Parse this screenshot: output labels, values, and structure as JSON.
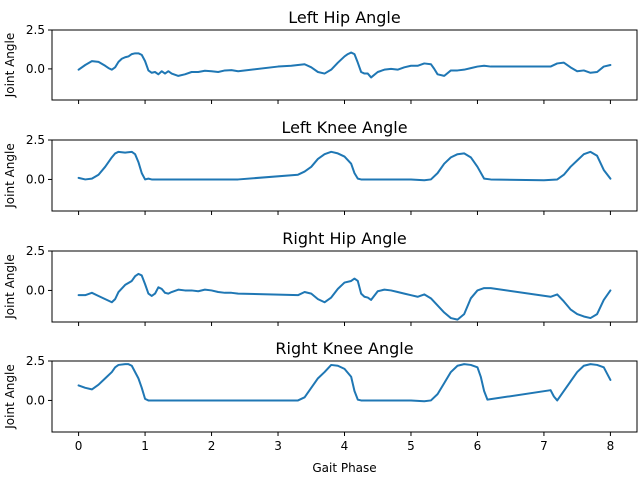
{
  "chart_data": [
    {
      "type": "line",
      "title": "Left Hip Angle",
      "ylabel": "Joint Angle",
      "xlabel": "",
      "xlim": [
        -0.4,
        8.4
      ],
      "ylim": [
        -2.0,
        2.5
      ],
      "yticks": [
        0.0,
        2.5
      ],
      "ytick_labels": [
        "0.0",
        "2.5"
      ],
      "xticks": [
        0,
        1,
        2,
        3,
        4,
        5,
        6,
        7,
        8
      ],
      "xtick_labels": [],
      "grid": false,
      "series": [
        {
          "x": [
            0.0,
            0.1,
            0.2,
            0.3,
            0.4,
            0.45,
            0.5,
            0.55,
            0.6,
            0.65,
            0.7,
            0.75,
            0.8,
            0.85,
            0.9,
            0.95,
            1.0,
            1.05,
            1.1,
            1.15,
            1.2,
            1.25,
            1.3,
            1.35,
            1.4,
            1.5,
            1.6,
            1.7,
            1.8,
            1.9,
            2.0,
            2.1,
            2.2,
            2.3,
            2.4,
            3.0,
            3.2,
            3.3,
            3.4,
            3.5,
            3.6,
            3.7,
            3.8,
            3.9,
            4.0,
            4.05,
            4.1,
            4.15,
            4.2,
            4.25,
            4.3,
            4.35,
            4.4,
            4.5,
            4.6,
            4.7,
            4.8,
            4.9,
            5.0,
            5.1,
            5.2,
            5.3,
            5.35,
            5.4,
            5.5,
            5.6,
            5.7,
            5.8,
            5.9,
            6.0,
            6.1,
            6.2,
            7.1,
            7.2,
            7.3,
            7.4,
            7.5,
            7.6,
            7.7,
            7.8,
            7.9,
            8.0
          ],
          "y": [
            -0.05,
            0.25,
            0.5,
            0.45,
            0.2,
            0.05,
            -0.05,
            0.1,
            0.45,
            0.65,
            0.75,
            0.8,
            0.95,
            1.0,
            1.0,
            0.9,
            0.5,
            -0.1,
            -0.25,
            -0.2,
            -0.35,
            -0.15,
            -0.3,
            -0.15,
            -0.3,
            -0.45,
            -0.35,
            -0.2,
            -0.2,
            -0.12,
            -0.15,
            -0.2,
            -0.1,
            -0.08,
            -0.15,
            0.15,
            0.2,
            0.25,
            0.3,
            0.1,
            -0.2,
            -0.3,
            -0.05,
            0.4,
            0.8,
            0.95,
            1.05,
            0.95,
            0.4,
            -0.2,
            -0.3,
            -0.3,
            -0.55,
            -0.2,
            -0.05,
            0.0,
            -0.05,
            0.1,
            0.2,
            0.2,
            0.35,
            0.3,
            0.0,
            -0.35,
            -0.45,
            -0.1,
            -0.1,
            -0.05,
            0.05,
            0.15,
            0.2,
            0.15,
            0.15,
            0.35,
            0.4,
            0.1,
            -0.15,
            -0.1,
            -0.25,
            -0.2,
            0.15,
            0.25
          ]
        }
      ]
    },
    {
      "type": "line",
      "title": "Left Knee Angle",
      "ylabel": "Joint Angle",
      "xlabel": "",
      "xlim": [
        -0.4,
        8.4
      ],
      "ylim": [
        -2.0,
        2.5
      ],
      "yticks": [
        0.0,
        2.5
      ],
      "ytick_labels": [
        "0.0",
        "2.5"
      ],
      "xticks": [
        0,
        1,
        2,
        3,
        4,
        5,
        6,
        7,
        8
      ],
      "xtick_labels": [],
      "grid": false,
      "series": [
        {
          "x": [
            0.0,
            0.1,
            0.2,
            0.3,
            0.4,
            0.5,
            0.55,
            0.6,
            0.7,
            0.8,
            0.85,
            0.9,
            0.95,
            1.0,
            1.05,
            1.1,
            1.2,
            1.5,
            2.0,
            2.4,
            3.3,
            3.4,
            3.5,
            3.6,
            3.7,
            3.8,
            3.9,
            4.0,
            4.1,
            4.15,
            4.2,
            4.25,
            4.3,
            4.5,
            5.0,
            5.2,
            5.3,
            5.4,
            5.5,
            5.6,
            5.7,
            5.8,
            5.9,
            6.0,
            6.1,
            6.2,
            7.0,
            7.2,
            7.3,
            7.4,
            7.5,
            7.6,
            7.7,
            7.8,
            7.9,
            8.0
          ],
          "y": [
            0.1,
            0.0,
            0.05,
            0.3,
            0.8,
            1.4,
            1.65,
            1.75,
            1.7,
            1.75,
            1.6,
            1.1,
            0.4,
            0.0,
            0.05,
            0.0,
            0.0,
            0.0,
            0.0,
            0.0,
            0.3,
            0.5,
            0.8,
            1.3,
            1.6,
            1.75,
            1.65,
            1.45,
            1.0,
            0.4,
            0.05,
            0.0,
            0.0,
            0.0,
            0.0,
            -0.05,
            0.0,
            0.4,
            1.0,
            1.4,
            1.6,
            1.65,
            1.4,
            0.8,
            0.05,
            0.0,
            -0.05,
            0.0,
            0.3,
            0.8,
            1.2,
            1.6,
            1.75,
            1.5,
            0.6,
            0.05
          ]
        }
      ]
    },
    {
      "type": "line",
      "title": "Right Hip Angle",
      "ylabel": "Joint Angle",
      "xlabel": "",
      "xlim": [
        -0.4,
        8.4
      ],
      "ylim": [
        -2.0,
        2.5
      ],
      "yticks": [
        0.0,
        2.5
      ],
      "ytick_labels": [
        "0.0",
        "2.5"
      ],
      "xticks": [
        0,
        1,
        2,
        3,
        4,
        5,
        6,
        7,
        8
      ],
      "xtick_labels": [],
      "grid": false,
      "series": [
        {
          "x": [
            0.0,
            0.1,
            0.2,
            0.3,
            0.4,
            0.5,
            0.55,
            0.6,
            0.7,
            0.8,
            0.85,
            0.9,
            0.95,
            1.0,
            1.05,
            1.1,
            1.15,
            1.2,
            1.25,
            1.3,
            1.35,
            1.4,
            1.5,
            1.6,
            1.7,
            1.8,
            1.9,
            2.0,
            2.1,
            2.2,
            2.3,
            2.4,
            3.3,
            3.4,
            3.5,
            3.6,
            3.7,
            3.8,
            3.9,
            4.0,
            4.1,
            4.15,
            4.2,
            4.25,
            4.3,
            4.35,
            4.4,
            4.5,
            4.6,
            4.7,
            4.8,
            4.9,
            5.0,
            5.1,
            5.2,
            5.3,
            5.4,
            5.5,
            5.6,
            5.7,
            5.8,
            5.9,
            6.0,
            6.1,
            6.2,
            7.1,
            7.2,
            7.3,
            7.4,
            7.5,
            7.6,
            7.7,
            7.8,
            7.9,
            8.0
          ],
          "y": [
            -0.3,
            -0.3,
            -0.15,
            -0.35,
            -0.55,
            -0.75,
            -0.55,
            -0.1,
            0.35,
            0.6,
            0.9,
            1.05,
            0.95,
            0.4,
            -0.2,
            -0.35,
            -0.2,
            0.2,
            0.1,
            -0.15,
            -0.2,
            -0.1,
            0.05,
            0.0,
            0.0,
            -0.05,
            0.05,
            0.0,
            -0.1,
            -0.15,
            -0.15,
            -0.2,
            -0.3,
            -0.1,
            -0.2,
            -0.55,
            -0.75,
            -0.45,
            0.1,
            0.5,
            0.6,
            0.75,
            0.6,
            -0.2,
            -0.4,
            -0.45,
            -0.6,
            -0.05,
            0.05,
            0.0,
            -0.1,
            -0.2,
            -0.3,
            -0.4,
            -0.25,
            -0.5,
            -0.95,
            -1.4,
            -1.75,
            -1.85,
            -1.5,
            -0.5,
            0.0,
            0.15,
            0.15,
            -0.4,
            -0.25,
            -0.7,
            -1.2,
            -1.5,
            -1.65,
            -1.75,
            -1.5,
            -0.6,
            0.0
          ]
        }
      ]
    },
    {
      "type": "line",
      "title": "Right Knee Angle",
      "ylabel": "Joint Angle",
      "xlabel": "Gait Phase",
      "xlim": [
        -0.4,
        8.4
      ],
      "ylim": [
        -2.0,
        2.5
      ],
      "yticks": [
        0.0,
        2.5
      ],
      "ytick_labels": [
        "0.0",
        "2.5"
      ],
      "xticks": [
        0,
        1,
        2,
        3,
        4,
        5,
        6,
        7,
        8
      ],
      "xtick_labels": [
        "0",
        "1",
        "2",
        "3",
        "4",
        "5",
        "6",
        "7",
        "8"
      ],
      "grid": false,
      "series": [
        {
          "x": [
            0.0,
            0.1,
            0.2,
            0.3,
            0.4,
            0.5,
            0.55,
            0.6,
            0.7,
            0.75,
            0.8,
            0.9,
            0.95,
            1.0,
            1.05,
            1.5,
            2.0,
            3.0,
            3.3,
            3.4,
            3.5,
            3.6,
            3.7,
            3.8,
            3.9,
            4.0,
            4.1,
            4.15,
            4.2,
            4.25,
            4.3,
            4.5,
            5.0,
            5.2,
            5.3,
            5.4,
            5.5,
            5.6,
            5.7,
            5.8,
            5.9,
            6.0,
            6.05,
            6.1,
            6.15,
            7.1,
            7.15,
            7.2,
            7.3,
            7.4,
            7.5,
            7.6,
            7.7,
            7.8,
            7.9,
            8.0
          ],
          "y": [
            0.95,
            0.8,
            0.7,
            1.0,
            1.4,
            1.8,
            2.1,
            2.25,
            2.3,
            2.3,
            2.2,
            1.4,
            0.8,
            0.1,
            0.0,
            0.0,
            0.0,
            0.0,
            0.0,
            0.2,
            0.8,
            1.4,
            1.8,
            2.25,
            2.2,
            2.0,
            1.5,
            0.6,
            0.05,
            0.0,
            0.0,
            0.0,
            0.0,
            -0.05,
            0.0,
            0.4,
            1.1,
            1.8,
            2.2,
            2.3,
            2.25,
            2.1,
            1.5,
            0.6,
            0.05,
            0.65,
            0.25,
            0.0,
            0.6,
            1.2,
            1.8,
            2.2,
            2.3,
            2.25,
            2.1,
            1.3
          ]
        }
      ]
    }
  ]
}
